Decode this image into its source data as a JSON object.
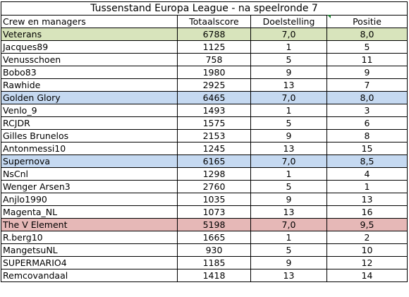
{
  "title": "Tussenstand Europa League - na speelronde 7",
  "headers": [
    "Crew en managers",
    "Totaalscore",
    "Doelstelling",
    "Positie"
  ],
  "colors": {
    "green_row": "#d8e4bc",
    "blue_row": "#c5d9f1",
    "red_row": "#e6b8b7",
    "marker": "#1e7d32"
  },
  "rows": [
    {
      "name": "Veterans",
      "score": "6788",
      "goal": "7,0",
      "pos": "8,0",
      "group": "green"
    },
    {
      "name": "Jacques89",
      "score": "1125",
      "goal": "1",
      "pos": "5"
    },
    {
      "name": "Venusschoen",
      "score": "758",
      "goal": "5",
      "pos": "11"
    },
    {
      "name": "Bobo83",
      "score": "1980",
      "goal": "9",
      "pos": "9"
    },
    {
      "name": "Rawhide",
      "score": "2925",
      "goal": "13",
      "pos": "7"
    },
    {
      "name": "Golden Glory",
      "score": "6465",
      "goal": "7,0",
      "pos": "8,0",
      "group": "blue"
    },
    {
      "name": "Venlo_9",
      "score": "1493",
      "goal": "1",
      "pos": "3"
    },
    {
      "name": "RCJDR",
      "score": "1575",
      "goal": "5",
      "pos": "6"
    },
    {
      "name": "Gilles Brunelos",
      "score": "2153",
      "goal": "9",
      "pos": "8"
    },
    {
      "name": "Antonmessi10",
      "score": "1245",
      "goal": "13",
      "pos": "15"
    },
    {
      "name": "Supernova",
      "score": "6165",
      "goal": "7,0",
      "pos": "8,5",
      "group": "blue"
    },
    {
      "name": "NsCnl",
      "score": "1298",
      "goal": "1",
      "pos": "4"
    },
    {
      "name": "Wenger Arsen3",
      "score": "2760",
      "goal": "5",
      "pos": "1"
    },
    {
      "name": "Anjlo1990",
      "score": "1035",
      "goal": "9",
      "pos": "13"
    },
    {
      "name": "Magenta_NL",
      "score": "1073",
      "goal": "13",
      "pos": "16"
    },
    {
      "name": "The V Element",
      "score": "5198",
      "goal": "7,0",
      "pos": "9,5",
      "group": "red"
    },
    {
      "name": "R.berg10",
      "score": "1665",
      "goal": "1",
      "pos": "2"
    },
    {
      "name": "MangetsuNL",
      "score": "930",
      "goal": "5",
      "pos": "10"
    },
    {
      "name": "SUPERMARIO4",
      "score": "1185",
      "goal": "9",
      "pos": "12"
    },
    {
      "name": "Remcovandaal",
      "score": "1418",
      "goal": "13",
      "pos": "14"
    }
  ]
}
